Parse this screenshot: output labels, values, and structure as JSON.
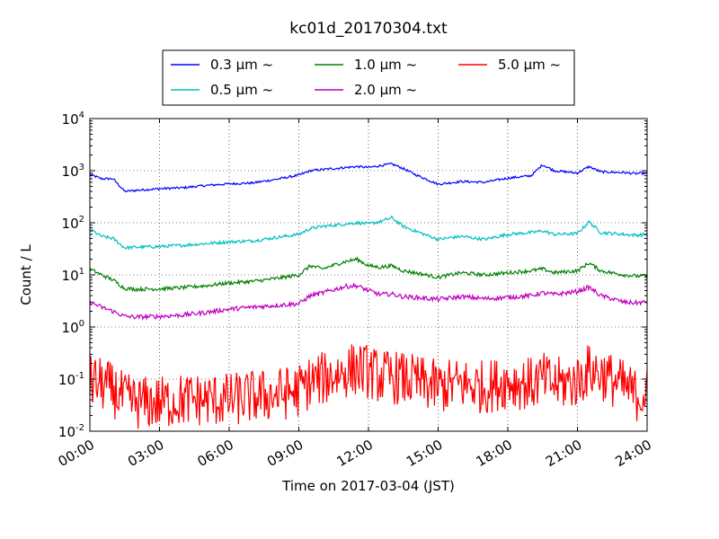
{
  "chart_data": {
    "type": "line",
    "title": "kc01d_20170304.txt",
    "xlabel": "Time on 2017-03-04 (JST)",
    "ylabel": "Count / L",
    "y_scale": "log",
    "ylim": [
      0.01,
      10000
    ],
    "xlim": [
      "00:00",
      "24:00"
    ],
    "x_tick_labels": [
      "00:00",
      "03:00",
      "06:00",
      "09:00",
      "12:00",
      "15:00",
      "18:00",
      "21:00",
      "24:00"
    ],
    "y_tick_labels": [
      {
        "base": "10",
        "exp": "-2"
      },
      {
        "base": "10",
        "exp": "-1"
      },
      {
        "base": "10",
        "exp": "0"
      },
      {
        "base": "10",
        "exp": "1"
      },
      {
        "base": "10",
        "exp": "2"
      },
      {
        "base": "10",
        "exp": "3"
      },
      {
        "base": "10",
        "exp": "4"
      }
    ],
    "grid": true,
    "legend_position": "top-center, above plot",
    "x_hours": [
      0,
      0.5,
      1,
      1.5,
      2,
      3,
      4,
      5,
      6,
      7,
      8,
      9,
      9.5,
      10,
      11,
      11.5,
      12,
      12.5,
      13,
      13.5,
      14,
      15,
      16,
      17,
      18,
      19,
      19.5,
      20,
      21,
      21.5,
      22,
      23,
      23.5,
      24
    ],
    "series": [
      {
        "name": "0.3 μm ~",
        "color": "#0000ff",
        "values": [
          850,
          700,
          700,
          400,
          420,
          450,
          470,
          520,
          560,
          580,
          680,
          820,
          1000,
          1050,
          1150,
          1200,
          1150,
          1250,
          1350,
          1100,
          850,
          550,
          620,
          600,
          720,
          800,
          1300,
          1000,
          900,
          1200,
          950,
          920,
          880,
          900
        ]
      },
      {
        "name": "0.5 μm ~",
        "color": "#00bfbf",
        "values": [
          75,
          55,
          50,
          33,
          34,
          35,
          37,
          40,
          43,
          45,
          52,
          60,
          78,
          85,
          95,
          100,
          95,
          105,
          125,
          85,
          70,
          48,
          55,
          48,
          60,
          65,
          70,
          60,
          62,
          105,
          65,
          60,
          58,
          60
        ]
      },
      {
        "name": "1.0 μm ~",
        "color": "#008000",
        "values": [
          13,
          10,
          8,
          5.5,
          5.3,
          5.4,
          5.7,
          6.2,
          7,
          7.5,
          8.5,
          10,
          15,
          13,
          18,
          20,
          15,
          14,
          15,
          12,
          11,
          9,
          11,
          10,
          11,
          12,
          13,
          11,
          12,
          17,
          12,
          10,
          9.5,
          9.5
        ]
      },
      {
        "name": "2.0 μm ~",
        "color": "#bf00bf",
        "values": [
          3,
          2.4,
          2,
          1.6,
          1.55,
          1.6,
          1.7,
          1.9,
          2.2,
          2.4,
          2.6,
          2.8,
          4,
          4.5,
          6,
          6.2,
          5,
          4.2,
          4.3,
          3.8,
          3.7,
          3.4,
          3.8,
          3.5,
          3.7,
          4,
          4.5,
          4.2,
          4.8,
          5.8,
          4,
          3,
          2.9,
          3
        ]
      },
      {
        "name": "5.0 μm ~",
        "color": "#ff0000",
        "values": [
          0.09,
          0.08,
          0.06,
          0.04,
          0.035,
          0.035,
          0.04,
          0.04,
          0.04,
          0.045,
          0.05,
          0.06,
          0.09,
          0.1,
          0.14,
          0.16,
          0.14,
          0.11,
          0.11,
          0.1,
          0.09,
          0.07,
          0.08,
          0.07,
          0.09,
          0.08,
          0.1,
          0.08,
          0.09,
          0.15,
          0.13,
          0.07,
          0.05,
          0.055
        ]
      }
    ]
  }
}
